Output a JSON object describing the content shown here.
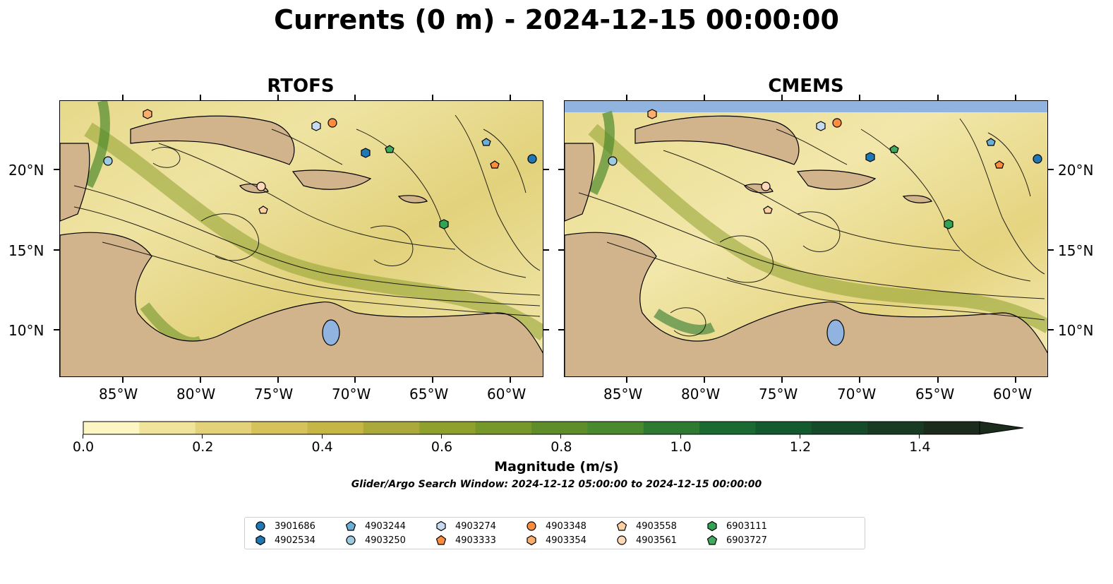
{
  "title": "Currents (0 m) - 2024-12-15 00:00:00",
  "panels": [
    {
      "title": "RTOFS"
    },
    {
      "title": "CMEMS"
    }
  ],
  "lon_ticks": [
    "85°W",
    "80°W",
    "75°W",
    "70°W",
    "65°W",
    "60°W"
  ],
  "lat_ticks": [
    "20°N",
    "15°N",
    "10°N"
  ],
  "colorbar": {
    "label": "Magnitude (m/s)",
    "tick_labels": [
      "0.0",
      "0.2",
      "0.4",
      "0.6",
      "0.8",
      "1.0",
      "1.2",
      "1.4"
    ],
    "colors": [
      "#fdf6c3",
      "#f0e39a",
      "#e4d27a",
      "#d6c25a",
      "#c6b645",
      "#aaa93a",
      "#8fa12a",
      "#76972a",
      "#5f8d2a",
      "#4a8a2e",
      "#2f7a31",
      "#1a6a32",
      "#135a2f",
      "#164b2a",
      "#1a3b23",
      "#1b2c1c"
    ]
  },
  "search_window": "Glider/Argo Search Window: 2024-12-12 05:00:00 to 2024-12-15 00:00:00",
  "map_colors": {
    "land": "#d2b48c",
    "lake": "#91b3e0",
    "coast": "#000000"
  },
  "legend": [
    {
      "id": "3901686",
      "marker": "circle",
      "color": "#1f77b4"
    },
    {
      "id": "4902534",
      "marker": "hexagon",
      "color": "#1f77b4"
    },
    {
      "id": "4903244",
      "marker": "pentagon",
      "color": "#6baed6"
    },
    {
      "id": "4903250",
      "marker": "circle",
      "color": "#9ecae1"
    },
    {
      "id": "4903274",
      "marker": "hexagon",
      "color": "#c6dbef"
    },
    {
      "id": "4903333",
      "marker": "pentagon",
      "color": "#fd8d3c"
    },
    {
      "id": "4903348",
      "marker": "circle",
      "color": "#fd8d3c"
    },
    {
      "id": "4903354",
      "marker": "hexagon",
      "color": "#fdae6b"
    },
    {
      "id": "4903558",
      "marker": "pentagon",
      "color": "#fdd0a2"
    },
    {
      "id": "4903561",
      "marker": "circle",
      "color": "#fdd9b8"
    },
    {
      "id": "6903111",
      "marker": "hexagon",
      "color": "#31a354"
    },
    {
      "id": "6903727",
      "marker": "pentagon",
      "color": "#41ab5d"
    }
  ]
}
